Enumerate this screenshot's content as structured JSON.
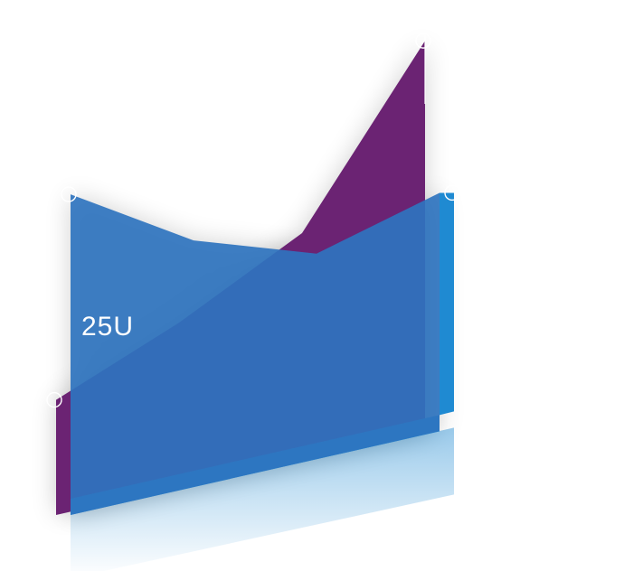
{
  "chart_data": {
    "type": "area",
    "x": [
      0,
      1,
      2,
      3
    ],
    "series": [
      {
        "values": [
          28,
          40,
          55,
          95
        ]
      },
      {
        "values": [
          78,
          60,
          50,
          58
        ]
      }
    ],
    "ylim": [
      0,
      120
    ],
    "grid": false,
    "annotations": [
      {
        "text": "25U",
        "series_index": 0,
        "point_index": 1
      }
    ]
  },
  "colors": {
    "series": [
      "#6b2373",
      "#2f74bf"
    ],
    "front_edge": "#1f8ad2",
    "label": "#ffffff"
  }
}
